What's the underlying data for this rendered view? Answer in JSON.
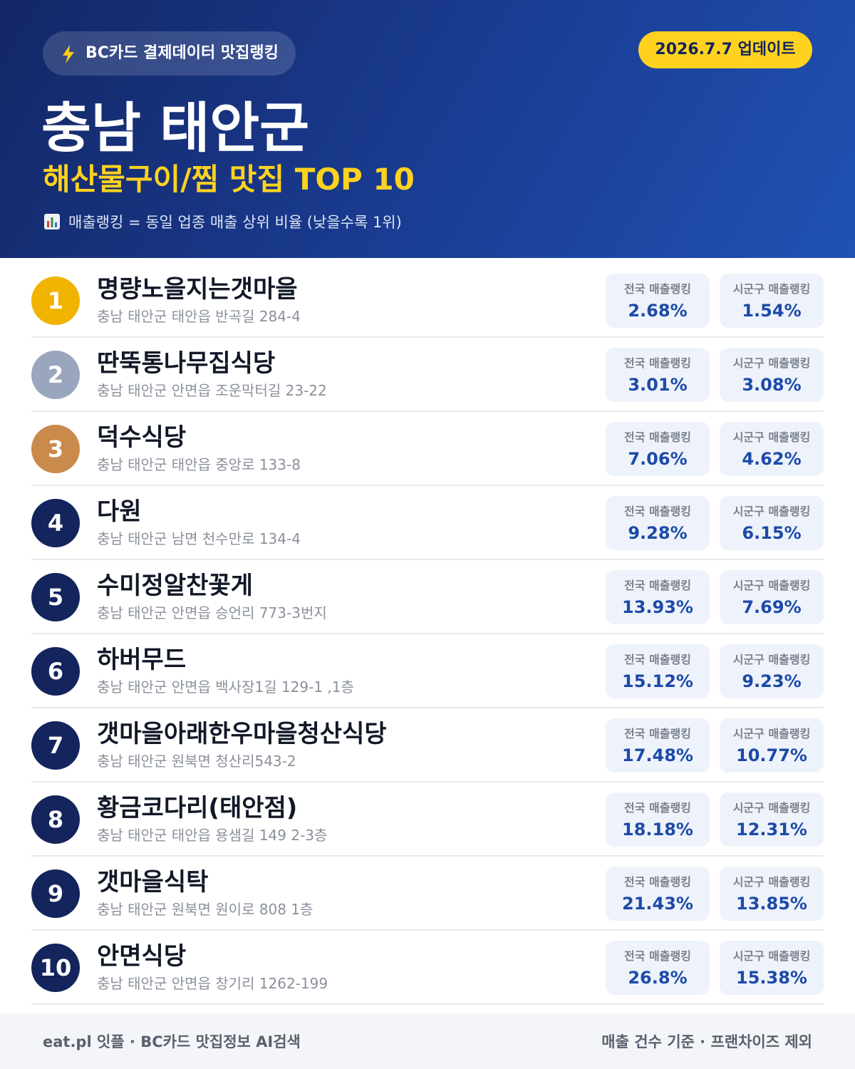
{
  "header": {
    "badge": "BC카드 결제데이터 맛집랭킹",
    "update": "2026.7.7 업데이트",
    "title": "충남 태안군",
    "subtitle": "해산물구이/찜 맛집 TOP 10",
    "note": "매출랭킹 = 동일 업종 매출 상위 비율 (낮을수록 1위)"
  },
  "labels": {
    "national": "전국 매출랭킹",
    "local": "시군구 매출랭킹"
  },
  "rows": [
    {
      "rank": "1",
      "name": "명량노을지는갯마을",
      "address": "충남 태안군 태안읍 반곡길 284-4",
      "national": "2.68%",
      "local": "1.54%"
    },
    {
      "rank": "2",
      "name": "딴뚝통나무집식당",
      "address": "충남 태안군 안면읍 조운막터길 23-22",
      "national": "3.01%",
      "local": "3.08%"
    },
    {
      "rank": "3",
      "name": "덕수식당",
      "address": "충남 태안군 태안읍 중앙로 133-8",
      "national": "7.06%",
      "local": "4.62%"
    },
    {
      "rank": "4",
      "name": "다원",
      "address": "충남 태안군 남면 천수만로 134-4",
      "national": "9.28%",
      "local": "6.15%"
    },
    {
      "rank": "5",
      "name": "수미정알찬꽃게",
      "address": "충남 태안군 안면읍 승언리 773-3번지",
      "national": "13.93%",
      "local": "7.69%"
    },
    {
      "rank": "6",
      "name": "하버무드",
      "address": "충남 태안군 안면읍 백사장1길 129-1 ,1층",
      "national": "15.12%",
      "local": "9.23%"
    },
    {
      "rank": "7",
      "name": "갯마을아래한우마을청산식당",
      "address": "충남 태안군 원북면 청산리543-2",
      "national": "17.48%",
      "local": "10.77%"
    },
    {
      "rank": "8",
      "name": "황금코다리(태안점)",
      "address": "충남 태안군 태안읍 용샘길 149 2-3층",
      "national": "18.18%",
      "local": "12.31%"
    },
    {
      "rank": "9",
      "name": "갯마을식탁",
      "address": "충남 태안군 원북면 원이로 808 1층",
      "national": "21.43%",
      "local": "13.85%"
    },
    {
      "rank": "10",
      "name": "안면식당",
      "address": "충남 태안군 안면읍 창기리 1262-199",
      "national": "26.8%",
      "local": "15.38%"
    }
  ],
  "footer": {
    "left": "eat.pl 잇플 · BC카드 맛집정보 AI검색",
    "right": "매출 건수 기준 · 프랜차이즈 제외"
  }
}
